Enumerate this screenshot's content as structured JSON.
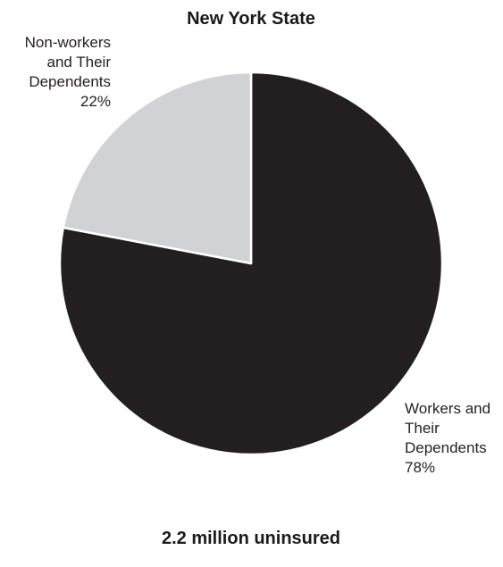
{
  "chart_data": {
    "type": "pie",
    "title": "New York State",
    "footer": "2.2 million uninsured",
    "start_angle_deg": 0,
    "direction": "clockwise",
    "slices": [
      {
        "label_lines": [
          "Workers and",
          "Their",
          "Dependents",
          "78%"
        ],
        "value": 78,
        "color": "#231f20"
      },
      {
        "label_lines": [
          "Non-workers",
          "and Their",
          "Dependents",
          "22%"
        ],
        "value": 22,
        "color": "#d1d2d4"
      }
    ],
    "slice_border_color": "#ffffff",
    "legend": "none"
  }
}
